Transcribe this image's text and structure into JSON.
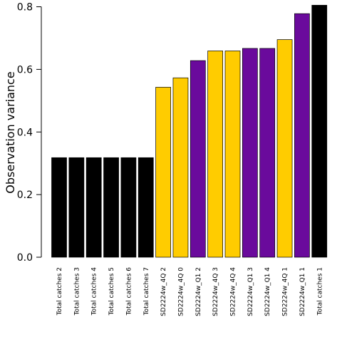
{
  "chart_data": {
    "type": "bar",
    "title": "",
    "xlabel": "",
    "ylabel": "Observation variance",
    "ylim": [
      0,
      0.8
    ],
    "yticks": [
      "0.0",
      "0.2",
      "0.4",
      "0.6",
      "0.8"
    ],
    "grid": false,
    "legend": "none",
    "categories": [
      "Total catches 2",
      "Total catches 3",
      "Total catches 4",
      "Total catches 5",
      "Total catches 6",
      "Total catches 7",
      "SD2224w_4Q 2",
      "SD2224w_4Q 0",
      "SD2224w_Q1 2",
      "SD2224w_4Q 3",
      "SD2224w_4Q 4",
      "SD2224w_Q1 3",
      "SD2224w_Q1 4",
      "SD2224w_4Q 1",
      "SD2224w_Q1 1",
      "Total catches 1"
    ],
    "values": [
      0.318,
      0.318,
      0.318,
      0.318,
      0.318,
      0.318,
      0.543,
      0.573,
      0.628,
      0.659,
      0.659,
      0.667,
      0.667,
      0.695,
      0.778,
      0.805
    ],
    "bar_colors": [
      "#000000",
      "#000000",
      "#000000",
      "#000000",
      "#000000",
      "#000000",
      "#FFCC00",
      "#FFCC00",
      "#6A0A9C",
      "#FFCC00",
      "#FFCC00",
      "#6A0A9C",
      "#6A0A9C",
      "#FFCC00",
      "#6A0A9C",
      "#000000"
    ]
  }
}
